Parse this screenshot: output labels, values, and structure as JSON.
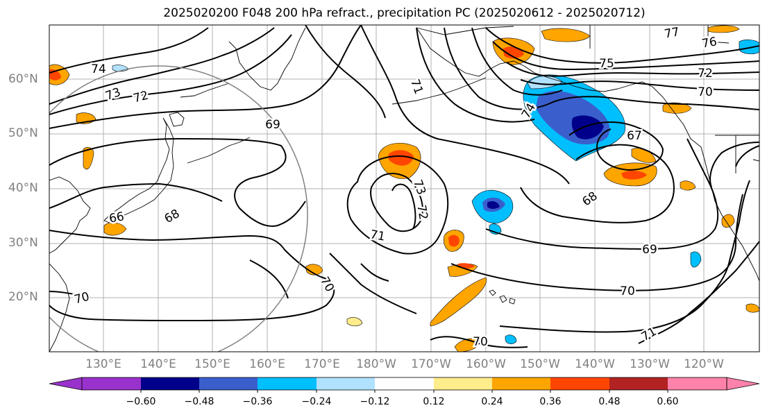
{
  "title": "2025020200 F048 200 hPa refract., precipitation PC (2025020612 - 2025020712)",
  "map": {
    "lat_labels": [
      "60°N",
      "50°N",
      "40°N",
      "30°N",
      "20°N"
    ],
    "lon_labels": [
      "130°E",
      "140°E",
      "150°E",
      "160°E",
      "170°E",
      "180°W",
      "170°W",
      "160°W",
      "150°W",
      "140°W",
      "130°W",
      "120°W"
    ],
    "contour_labels": [
      "74",
      "73",
      "72",
      "69",
      "68",
      "70",
      "71",
      "73",
      "72",
      "71",
      "70",
      "75",
      "77",
      "76",
      "72",
      "70",
      "74",
      "67",
      "68",
      "69",
      "70",
      "71",
      "70",
      "66"
    ],
    "contour_color": "#000000",
    "coastline_color": "#000000",
    "grid_color": "#b0b0b0",
    "circle_color": "#808080"
  },
  "colorbar": {
    "ticks": [
      "−0.60",
      "−0.48",
      "−0.36",
      "−0.24",
      "−0.12",
      "0.12",
      "0.24",
      "0.36",
      "0.48",
      "0.60"
    ],
    "colors": [
      "#9932cc",
      "#00008b",
      "#3a5fcd",
      "#00bfff",
      "#b0e2ff",
      "#ffffff",
      "#ffec8b",
      "#ffa500",
      "#ff4500",
      "#b22222",
      "#ff82ab"
    ]
  }
}
